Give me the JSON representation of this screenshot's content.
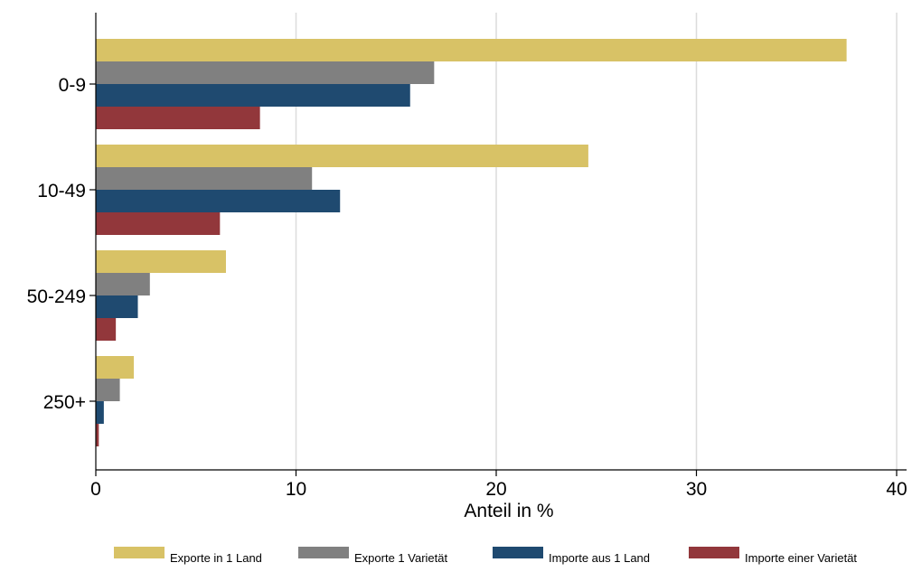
{
  "chart_data": {
    "type": "bar",
    "orientation": "horizontal",
    "title": "",
    "xlabel": "Anteil in %",
    "ylabel": "",
    "xlim": [
      0,
      40
    ],
    "x_ticks": [
      0,
      10,
      20,
      30,
      40
    ],
    "categories": [
      "0-9",
      "10-49",
      "50-249",
      "250+"
    ],
    "series": [
      {
        "name": "Exporte in 1 Land",
        "color": "#d8c266",
        "values": [
          37.5,
          24.6,
          6.5,
          1.9
        ]
      },
      {
        "name": "Exporte 1 Varietät",
        "color": "#808080",
        "values": [
          16.9,
          10.8,
          2.7,
          1.2
        ]
      },
      {
        "name": "Importe aus 1 Land",
        "color": "#1f4a70",
        "values": [
          15.7,
          12.2,
          2.1,
          0.4
        ]
      },
      {
        "name": "Importe einer Varietät",
        "color": "#92373b",
        "values": [
          8.2,
          6.2,
          1.0,
          0.15
        ]
      }
    ],
    "grid": "vertical",
    "legend_position": "bottom"
  }
}
